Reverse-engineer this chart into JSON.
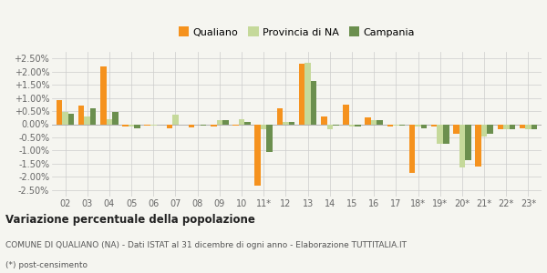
{
  "years": [
    "02",
    "03",
    "04",
    "05",
    "06",
    "07",
    "08",
    "09",
    "10",
    "11*",
    "12",
    "13",
    "14",
    "15",
    "16",
    "17",
    "18*",
    "19*",
    "20*",
    "21*",
    "22*",
    "23*"
  ],
  "qualiano": [
    0.009,
    0.007,
    0.022,
    -0.0007,
    -0.0005,
    -0.0015,
    -0.0013,
    -0.0008,
    -0.0005,
    -0.0235,
    0.006,
    0.023,
    0.003,
    0.0075,
    0.0025,
    -0.0008,
    -0.0185,
    -0.0007,
    -0.0035,
    -0.016,
    -0.002,
    -0.0015
  ],
  "provincia_na": [
    0.0045,
    0.003,
    0.002,
    -0.001,
    -0.0005,
    0.0035,
    0.0,
    0.0015,
    0.0018,
    -0.002,
    0.001,
    0.0235,
    -0.002,
    -0.0008,
    0.0015,
    -0.0005,
    -0.001,
    -0.0075,
    -0.0165,
    -0.0045,
    -0.002,
    -0.002
  ],
  "campania": [
    0.004,
    0.006,
    0.0047,
    -0.0015,
    0.0,
    0.0,
    -0.0005,
    0.0015,
    0.001,
    -0.0105,
    0.001,
    0.0165,
    -0.0005,
    -0.001,
    0.0015,
    -0.0005,
    -0.0015,
    -0.0075,
    -0.0135,
    -0.0035,
    -0.0018,
    -0.0018
  ],
  "color_qualiano": "#f5921e",
  "color_provincia": "#c5d99a",
  "color_campania": "#6b8f4e",
  "title": "Variazione percentuale della popolazione",
  "subtitle": "COMUNE DI QUALIANO (NA) - Dati ISTAT al 31 dicembre di ogni anno - Elaborazione TUTTITALIA.IT",
  "footnote": "(*) post-censimento",
  "ylim": [
    -0.0275,
    0.0275
  ],
  "yticks": [
    -0.025,
    -0.02,
    -0.015,
    -0.01,
    -0.005,
    0.0,
    0.005,
    0.01,
    0.015,
    0.02,
    0.025
  ],
  "ytick_labels": [
    "-2.50%",
    "-2.00%",
    "-1.50%",
    "-1.00%",
    "-0.50%",
    "0.00%",
    "+0.50%",
    "+1.00%",
    "+1.50%",
    "+2.00%",
    "+2.50%"
  ],
  "bg_color": "#f5f5f0",
  "legend_qualiano": "Qualiano",
  "legend_provincia": "Provincia di NA",
  "legend_campania": "Campania"
}
